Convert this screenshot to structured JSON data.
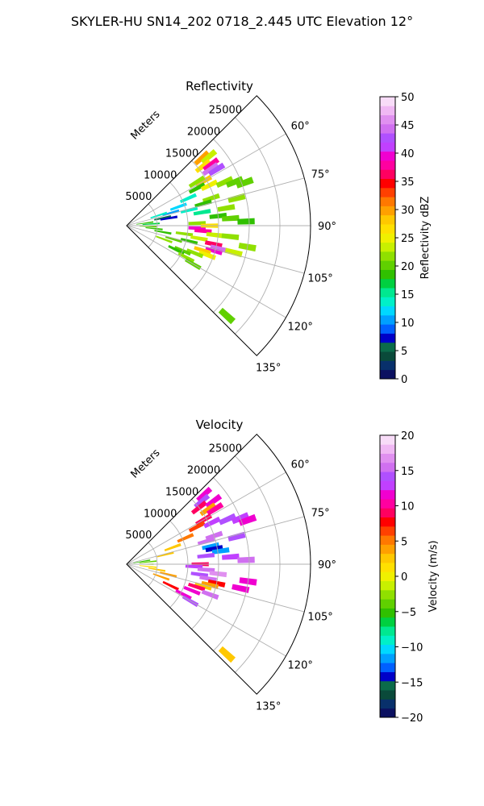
{
  "figure": {
    "suptitle": "SKYLER-HU  SN14_202  0718_2.445 UTC Elevation 12°"
  },
  "chart_data": [
    {
      "type": "heatmap",
      "projection": "polar-sector",
      "title": "Reflectivity",
      "radial_axis_label": "Meters",
      "radial_ticks": [
        5000,
        10000,
        15000,
        20000,
        25000
      ],
      "radial_tick_labels": [
        "5000",
        "10000",
        "15000",
        "20000",
        "25000"
      ],
      "r_max": 30000,
      "azimuth_ticks": [
        60,
        75,
        90,
        105,
        120,
        135
      ],
      "azimuth_tick_labels": [
        "60°",
        "75°",
        "90°",
        "105°",
        "120°",
        "135°"
      ],
      "azimuth_range": [
        45,
        135
      ],
      "grid": true,
      "colorbar": {
        "label": "Reflectivity dBZ",
        "range": [
          0,
          50
        ],
        "ticks": [
          0,
          5,
          10,
          15,
          20,
          25,
          30,
          35,
          40,
          45,
          50
        ],
        "tick_labels": [
          "0",
          "5",
          "10",
          "15",
          "20",
          "25",
          "30",
          "35",
          "40",
          "45",
          "50"
        ],
        "colors": [
          "#0b1060",
          "#08306b",
          "#0a4a3a",
          "#0b6b4a",
          "#0000c8",
          "#0060ff",
          "#00a0ff",
          "#00d8ff",
          "#00f0c8",
          "#00e890",
          "#00d040",
          "#30c000",
          "#60d000",
          "#90e000",
          "#c8f000",
          "#f0f000",
          "#ffe000",
          "#ffc800",
          "#ffa000",
          "#ff7800",
          "#ff4000",
          "#ff0000",
          "#ff0060",
          "#ff00a0",
          "#f000d0",
          "#c040ff",
          "#b050ff",
          "#d070f0",
          "#e090f0",
          "#f0b8f4",
          "#f8dcf8"
        ]
      },
      "cells": [
        {
          "az": 48,
          "r": 16500,
          "v": 30
        },
        {
          "az": 50,
          "r": 17500,
          "v": 24
        },
        {
          "az": 52,
          "r": 15800,
          "v": 27
        },
        {
          "az": 54,
          "r": 17000,
          "v": 38
        },
        {
          "az": 56,
          "r": 16500,
          "v": 44
        },
        {
          "az": 58,
          "r": 17300,
          "v": 42
        },
        {
          "az": 60,
          "r": 14500,
          "v": 28
        },
        {
          "az": 58,
          "r": 13500,
          "v": 22
        },
        {
          "az": 62,
          "r": 13000,
          "v": 19
        },
        {
          "az": 64,
          "r": 15000,
          "v": 25
        },
        {
          "az": 66,
          "r": 17500,
          "v": 22
        },
        {
          "az": 68,
          "r": 19000,
          "v": 20
        },
        {
          "az": 70,
          "r": 20500,
          "v": 20
        },
        {
          "az": 72,
          "r": 14500,
          "v": 22
        },
        {
          "az": 74,
          "r": 13000,
          "v": 18
        },
        {
          "az": 66,
          "r": 11000,
          "v": 14
        },
        {
          "az": 70,
          "r": 9000,
          "v": 12
        },
        {
          "az": 74,
          "r": 7500,
          "v": 10
        },
        {
          "az": 72,
          "r": 5500,
          "v": 14
        },
        {
          "az": 78,
          "r": 6000,
          "v": 6
        },
        {
          "az": 80,
          "r": 7000,
          "v": 8
        },
        {
          "az": 76,
          "r": 10500,
          "v": 13
        },
        {
          "az": 80,
          "r": 12500,
          "v": 15
        },
        {
          "az": 84,
          "r": 15000,
          "v": 18
        },
        {
          "az": 86,
          "r": 17000,
          "v": 20
        },
        {
          "az": 80,
          "r": 16500,
          "v": 22
        },
        {
          "az": 88,
          "r": 11500,
          "v": 22
        },
        {
          "az": 92,
          "r": 11500,
          "v": 40
        },
        {
          "az": 94,
          "r": 12500,
          "v": 38
        },
        {
          "az": 90,
          "r": 13500,
          "v": 26
        },
        {
          "az": 96,
          "r": 14500,
          "v": 24
        },
        {
          "az": 98,
          "r": 9500,
          "v": 22
        },
        {
          "az": 100,
          "r": 12000,
          "v": 24
        },
        {
          "az": 102,
          "r": 14500,
          "v": 36
        },
        {
          "az": 104,
          "r": 15500,
          "v": 44
        },
        {
          "az": 106,
          "r": 14800,
          "v": 40
        },
        {
          "az": 104,
          "r": 18000,
          "v": 24
        },
        {
          "az": 100,
          "r": 20000,
          "v": 22
        },
        {
          "az": 108,
          "r": 13000,
          "v": 28
        },
        {
          "az": 110,
          "r": 14000,
          "v": 25
        },
        {
          "az": 112,
          "r": 12000,
          "v": 22
        },
        {
          "az": 114,
          "r": 10000,
          "v": 20
        },
        {
          "az": 106,
          "r": 8000,
          "v": 20
        },
        {
          "az": 100,
          "r": 6000,
          "v": 18
        },
        {
          "az": 96,
          "r": 4500,
          "v": 19
        },
        {
          "az": 92,
          "r": 3500,
          "v": 20
        },
        {
          "az": 86,
          "r": 4000,
          "v": 17
        },
        {
          "az": 82,
          "r": 3000,
          "v": 18
        },
        {
          "az": 110,
          "r": 6500,
          "v": 21
        },
        {
          "az": 116,
          "r": 9000,
          "v": 19
        },
        {
          "az": 118,
          "r": 11000,
          "v": 22
        },
        {
          "az": 120,
          "r": 12500,
          "v": 20
        },
        {
          "az": 104,
          "r": 10500,
          "v": 19
        },
        {
          "az": 96,
          "r": 17000,
          "v": 21
        },
        {
          "az": 88,
          "r": 19500,
          "v": 18
        },
        {
          "az": 76,
          "r": 18500,
          "v": 21
        },
        {
          "az": 132,
          "r": 22000,
          "v": 20
        }
      ]
    },
    {
      "type": "heatmap",
      "projection": "polar-sector",
      "title": "Velocity",
      "radial_axis_label": "Meters",
      "radial_ticks": [
        5000,
        10000,
        15000,
        20000,
        25000
      ],
      "radial_tick_labels": [
        "5000",
        "10000",
        "15000",
        "20000",
        "25000"
      ],
      "r_max": 30000,
      "azimuth_ticks": [
        60,
        75,
        90,
        105,
        120,
        135
      ],
      "azimuth_tick_labels": [
        "60°",
        "75°",
        "90°",
        "105°",
        "120°",
        "135°"
      ],
      "azimuth_range": [
        45,
        135
      ],
      "grid": true,
      "colorbar": {
        "label": "Velocity (m/s)",
        "range": [
          -20,
          20
        ],
        "ticks": [
          -20,
          -15,
          -10,
          -5,
          0,
          5,
          10,
          15,
          20
        ],
        "tick_labels": [
          "−20",
          "−15",
          "−10",
          "−5",
          "0",
          "5",
          "10",
          "15",
          "20"
        ],
        "colors": [
          "#0b1060",
          "#08306b",
          "#0a4a3a",
          "#0b6b4a",
          "#0000c8",
          "#0060ff",
          "#00a0ff",
          "#00d8ff",
          "#00f0c8",
          "#00e890",
          "#00d040",
          "#30c000",
          "#60d000",
          "#90e000",
          "#c8f000",
          "#f0f000",
          "#ffe000",
          "#ffc800",
          "#ffa000",
          "#ff7800",
          "#ff4000",
          "#ff0000",
          "#ff0060",
          "#ff00a0",
          "#f000d0",
          "#c040ff",
          "#b050ff",
          "#d070f0",
          "#e090f0",
          "#f0b8f4",
          "#f8dcf8"
        ]
      },
      "cells": [
        {
          "az": 48,
          "r": 17000,
          "v": 12
        },
        {
          "az": 50,
          "r": 16000,
          "v": 14
        },
        {
          "az": 52,
          "r": 15000,
          "v": 9
        },
        {
          "az": 54,
          "r": 17500,
          "v": 11
        },
        {
          "az": 56,
          "r": 16000,
          "v": 4
        },
        {
          "az": 58,
          "r": 17000,
          "v": 10
        },
        {
          "az": 60,
          "r": 14500,
          "v": 9
        },
        {
          "az": 62,
          "r": 13000,
          "v": 7
        },
        {
          "az": 64,
          "r": 15500,
          "v": 13
        },
        {
          "az": 66,
          "r": 18000,
          "v": 14
        },
        {
          "az": 68,
          "r": 20000,
          "v": 13
        },
        {
          "az": 70,
          "r": 21000,
          "v": 11
        },
        {
          "az": 72,
          "r": 15000,
          "v": 15
        },
        {
          "az": 74,
          "r": 13500,
          "v": 16
        },
        {
          "az": 78,
          "r": 14000,
          "v": -12
        },
        {
          "az": 80,
          "r": 14500,
          "v": -14
        },
        {
          "az": 82,
          "r": 15500,
          "v": -11
        },
        {
          "az": 84,
          "r": 13000,
          "v": 14
        },
        {
          "az": 86,
          "r": 17000,
          "v": 13
        },
        {
          "az": 90,
          "r": 12000,
          "v": 9
        },
        {
          "az": 92,
          "r": 11000,
          "v": 13
        },
        {
          "az": 94,
          "r": 13000,
          "v": 16
        },
        {
          "az": 96,
          "r": 15000,
          "v": 17
        },
        {
          "az": 98,
          "r": 12000,
          "v": 14
        },
        {
          "az": 100,
          "r": 13500,
          "v": 15
        },
        {
          "az": 102,
          "r": 15000,
          "v": 8
        },
        {
          "az": 104,
          "r": 14000,
          "v": 4
        },
        {
          "az": 106,
          "r": 13000,
          "v": 2
        },
        {
          "az": 108,
          "r": 12000,
          "v": 9
        },
        {
          "az": 110,
          "r": 14500,
          "v": 15
        },
        {
          "az": 112,
          "r": 11500,
          "v": 12
        },
        {
          "az": 98,
          "r": 20000,
          "v": 11
        },
        {
          "az": 102,
          "r": 19000,
          "v": 12
        },
        {
          "az": 104,
          "r": 7000,
          "v": 4
        },
        {
          "az": 100,
          "r": 5000,
          "v": 3
        },
        {
          "az": 96,
          "r": 3500,
          "v": 1
        },
        {
          "az": 90,
          "r": 3000,
          "v": -2
        },
        {
          "az": 84,
          "r": 3500,
          "v": -4
        },
        {
          "az": 80,
          "r": 2500,
          "v": -5
        },
        {
          "az": 76,
          "r": 6500,
          "v": 2
        },
        {
          "az": 70,
          "r": 8000,
          "v": 3
        },
        {
          "az": 66,
          "r": 10500,
          "v": 5
        },
        {
          "az": 110,
          "r": 6000,
          "v": 4
        },
        {
          "az": 116,
          "r": 8000,
          "v": 8
        },
        {
          "az": 118,
          "r": 10500,
          "v": 11
        },
        {
          "az": 120,
          "r": 12000,
          "v": 14
        },
        {
          "az": 88,
          "r": 19500,
          "v": 15
        },
        {
          "az": 76,
          "r": 18500,
          "v": 14
        },
        {
          "az": 132,
          "r": 22000,
          "v": 3
        }
      ]
    }
  ]
}
